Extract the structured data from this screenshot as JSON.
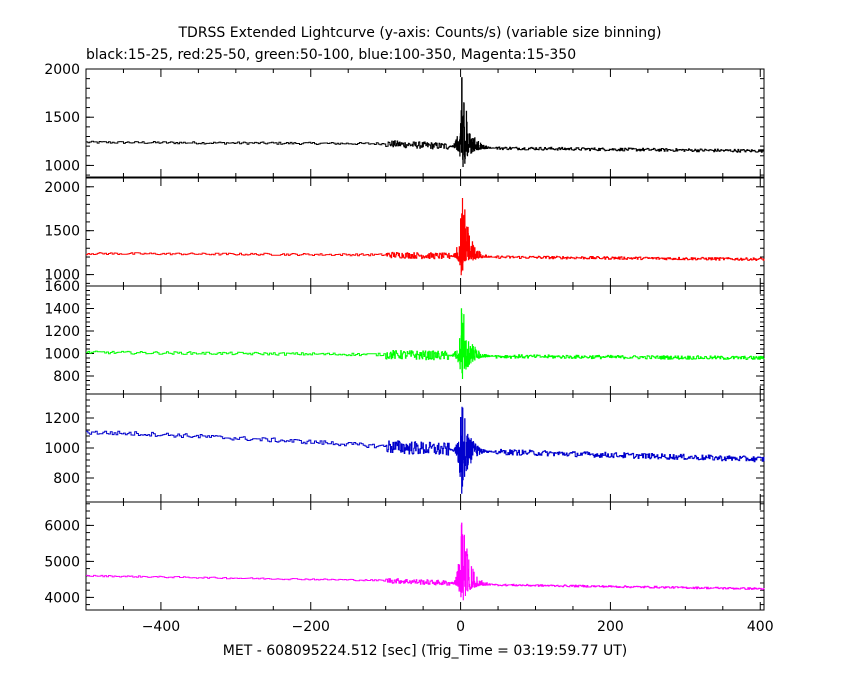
{
  "chart_data": {
    "type": "line",
    "title": "TDRSS Extended Lightcurve (y-axis: Counts/s) (variable size binning)",
    "subtitle": "black:15-25, red:25-50, green:50-100, blue:100-350, Magenta:15-350",
    "xlabel": "MET - 608095224.512 [sec] (Trig_Time = 03:19:59.77 UT)",
    "xlim": [
      -500,
      405
    ],
    "xticks": [
      -400,
      -200,
      0,
      200,
      400
    ],
    "xtick_labels": [
      "−400",
      "−200",
      "0",
      "200",
      "400"
    ],
    "grid": false,
    "panels": [
      {
        "name": "black:15-25",
        "color": "#000000",
        "ylim": [
          880,
          2000
        ],
        "yticks": [
          1000,
          1500,
          2000
        ],
        "ytick_labels": [
          "1000",
          "1500",
          "2000"
        ],
        "baseline": [
          [
            -500,
            1240
          ],
          [
            -100,
            1225
          ],
          [
            40,
            1180
          ],
          [
            405,
            1150
          ]
        ],
        "pre_noise": 12,
        "mid_noise": 35,
        "burst_peak": 2000,
        "burst_low": 900
      },
      {
        "name": "red:25-50",
        "color": "#ff0000",
        "ylim": [
          870,
          2100
        ],
        "yticks": [
          1000,
          1500,
          2000
        ],
        "ytick_labels": [
          "1000",
          "1500",
          "2000"
        ],
        "baseline": [
          [
            -500,
            1240
          ],
          [
            -100,
            1225
          ],
          [
            40,
            1200
          ],
          [
            405,
            1175
          ]
        ],
        "pre_noise": 12,
        "mid_noise": 35,
        "burst_peak": 2100,
        "burst_low": 970
      },
      {
        "name": "green:50-100",
        "color": "#00ff00",
        "ylim": [
          640,
          1600
        ],
        "yticks": [
          800,
          1000,
          1200,
          1400,
          1600
        ],
        "ytick_labels": [
          "800",
          "1000",
          "1200",
          "1400",
          "1600"
        ],
        "baseline": [
          [
            -500,
            1010
          ],
          [
            -100,
            990
          ],
          [
            40,
            975
          ],
          [
            405,
            960
          ]
        ],
        "pre_noise": 12,
        "mid_noise": 40,
        "burst_peak": 1600,
        "burst_low": 720
      },
      {
        "name": "blue:100-350",
        "color": "#0000cc",
        "ylim": [
          640,
          1360
        ],
        "yticks": [
          800,
          1000,
          1200
        ],
        "ytick_labels": [
          "800",
          "1000",
          "1200"
        ],
        "baseline": [
          [
            -500,
            1105
          ],
          [
            -400,
            1090
          ],
          [
            -200,
            1040
          ],
          [
            -100,
            1010
          ],
          [
            40,
            975
          ],
          [
            405,
            925
          ]
        ],
        "pre_noise": 14,
        "mid_noise": 45,
        "burst_peak": 1360,
        "burst_low": 640
      },
      {
        "name": "Magenta:15-350",
        "color": "#ff00ff",
        "ylim": [
          3650,
          6650
        ],
        "yticks": [
          4000,
          5000,
          6000
        ],
        "ytick_labels": [
          "4000",
          "5000",
          "6000"
        ],
        "baseline": [
          [
            -500,
            4600
          ],
          [
            -100,
            4470
          ],
          [
            40,
            4350
          ],
          [
            405,
            4240
          ]
        ],
        "pre_noise": 20,
        "mid_noise": 70,
        "burst_peak": 6650,
        "burst_low": 3700
      }
    ]
  }
}
